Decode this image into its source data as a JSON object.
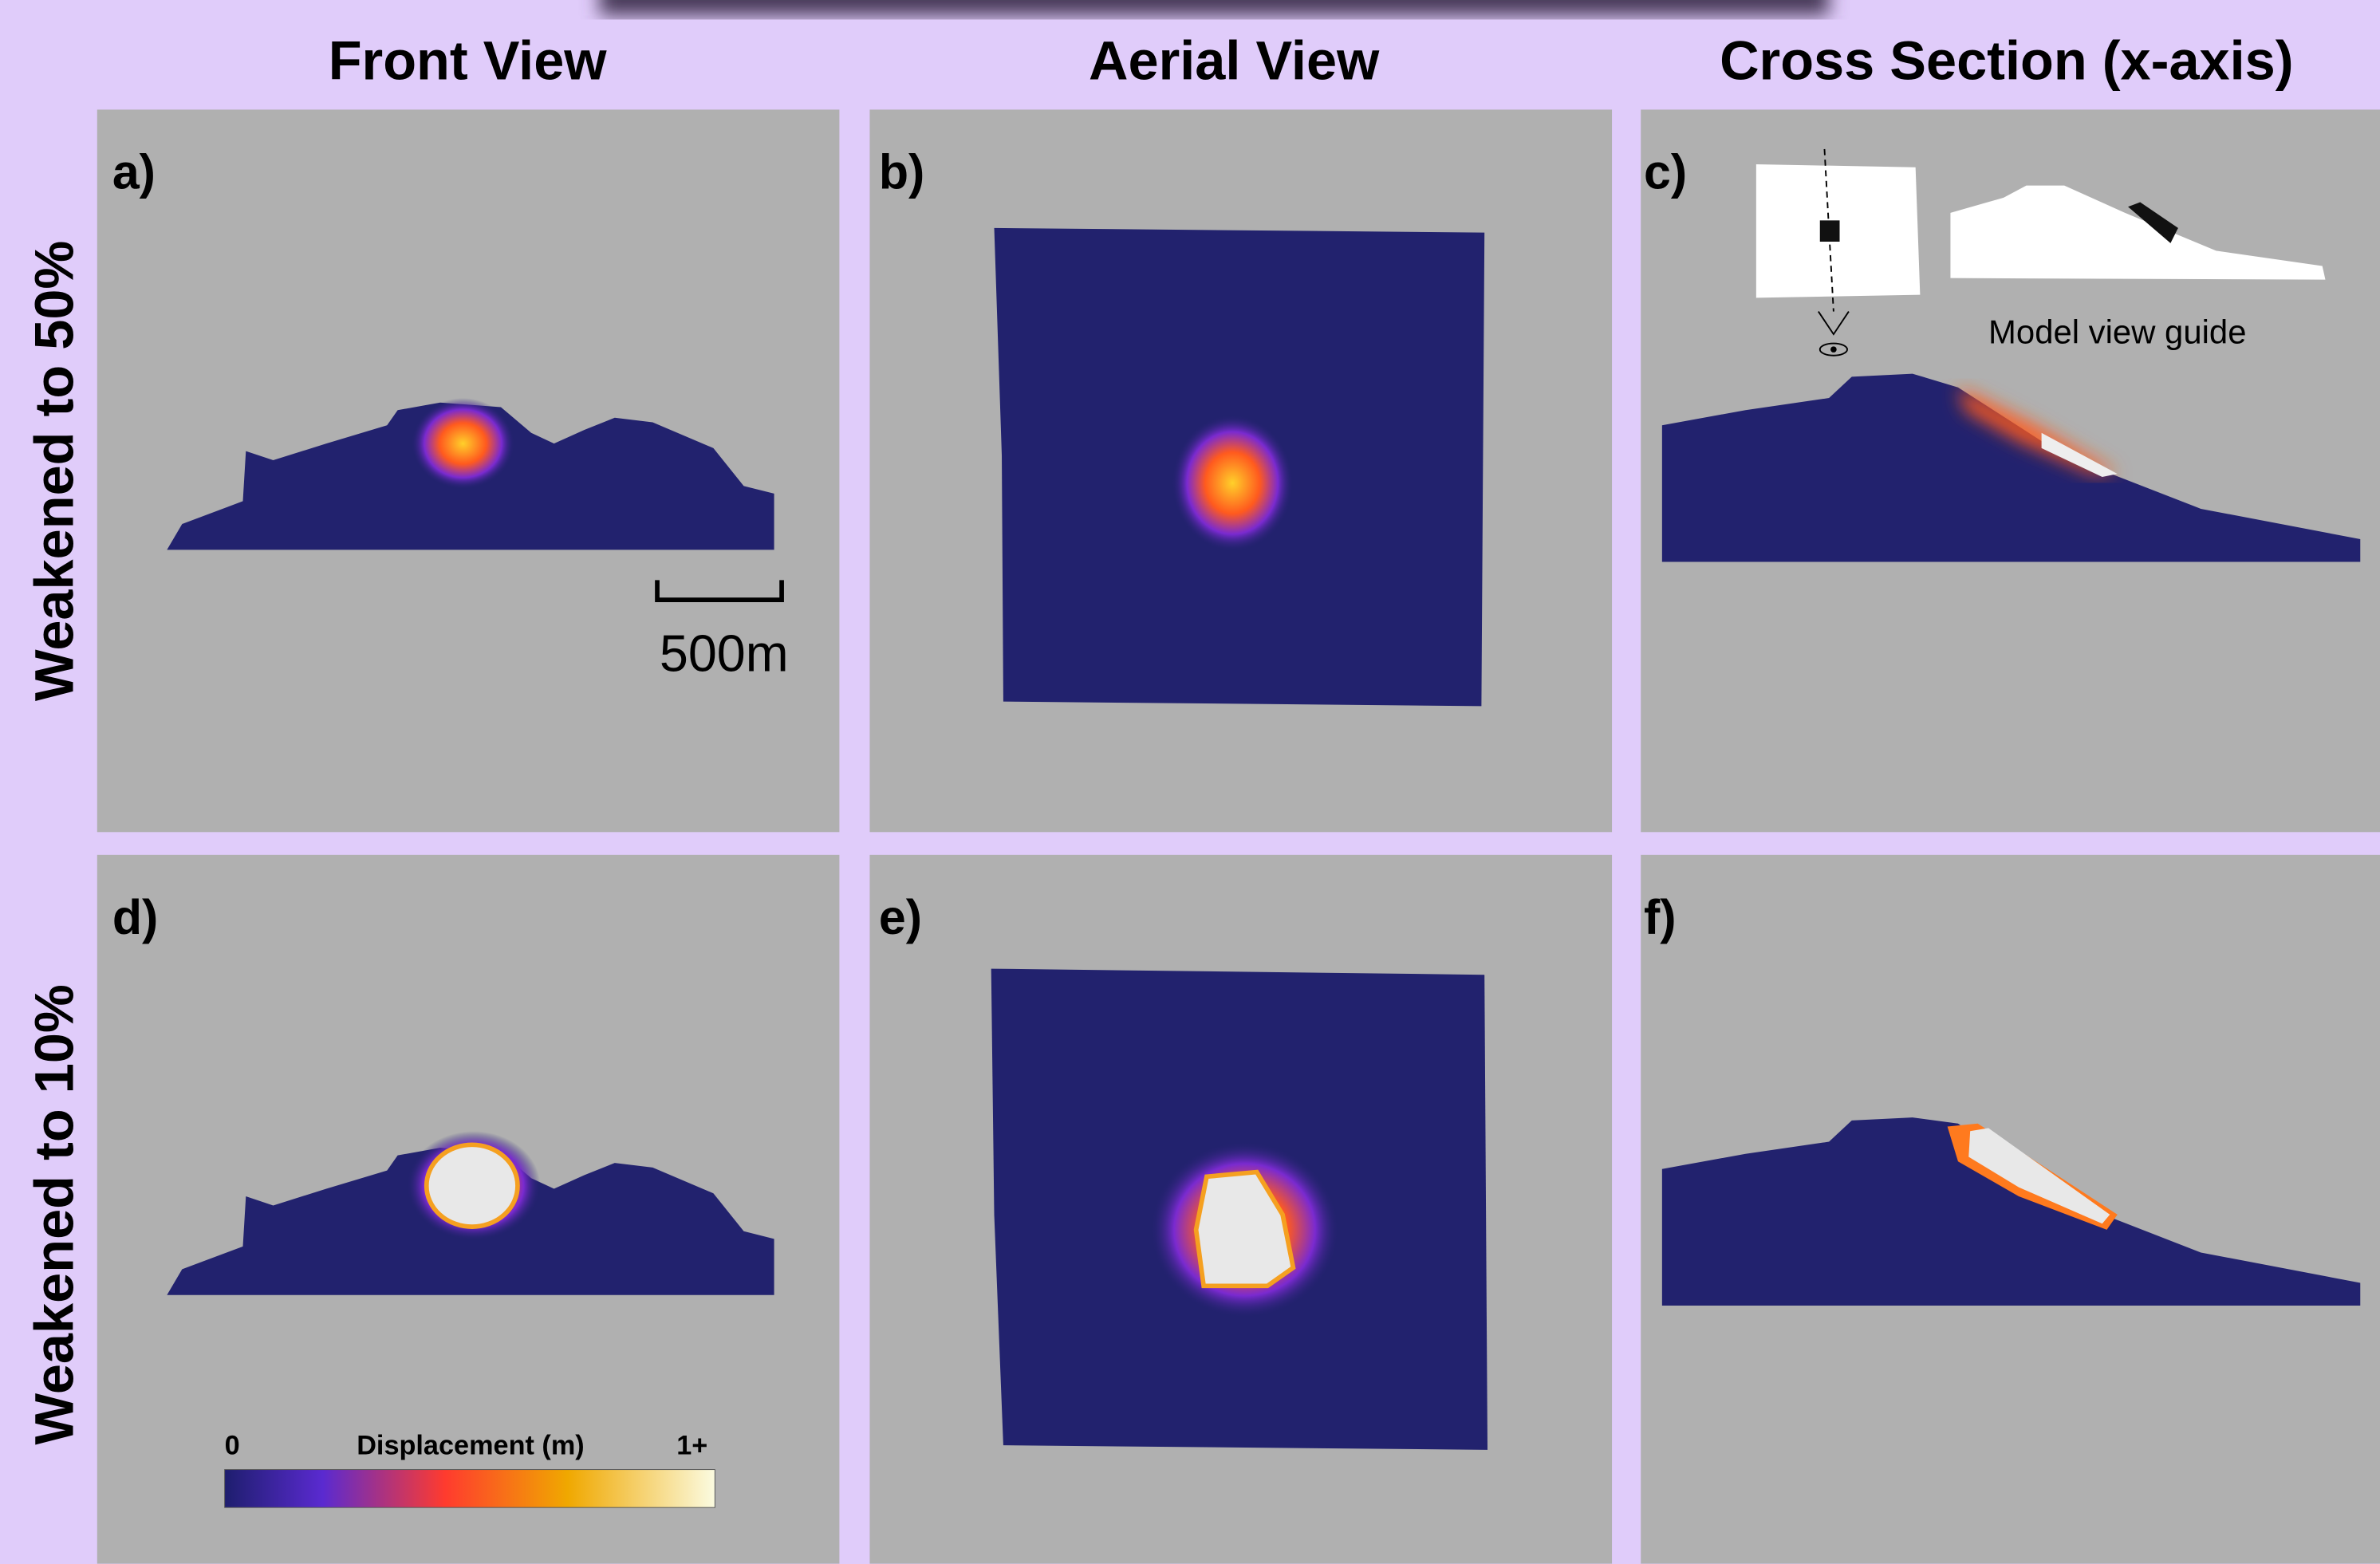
{
  "header": {
    "columns": [
      "Front View",
      "Aerial View",
      "Cross Section (x-axis)"
    ]
  },
  "rows": [
    "Weakened to 50%",
    "Weakened to 10%"
  ],
  "panels": [
    "a)",
    "b)",
    "c)",
    "d)",
    "e)",
    "f)"
  ],
  "scale_bar": {
    "label": "500m"
  },
  "guide": {
    "label": "Model view guide"
  },
  "colorbar": {
    "min_label": "0",
    "title": "Displacement (m)",
    "max_label": "1+"
  }
}
